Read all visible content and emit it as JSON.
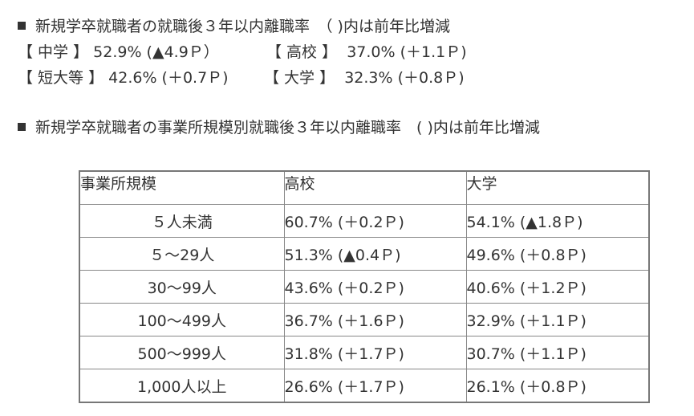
{
  "heading1": {
    "marker": "■",
    "text": "新規学卒就職者の就職後３年以内離職率　（ )内は前年比増減"
  },
  "summary": [
    [
      {
        "label": "【 中学 】",
        "value": "52.9% (▲4.9Ｐ）"
      },
      {
        "label": "【 高校 】",
        "value": "37.0% (＋1.1Ｐ)"
      }
    ],
    [
      {
        "label": "【 短大等 】",
        "value": "42.6% (＋0.7Ｐ)"
      },
      {
        "label": "【 大学 】",
        "value": "32.3% (＋0.8Ｐ)"
      }
    ]
  ],
  "heading2": {
    "marker": "■",
    "text": "新規学卒就職者の事業所規模別就職後３年以内離職率　( )内は前年比増減"
  },
  "table": {
    "headers": [
      "事業所規模",
      "高校",
      "大学"
    ],
    "rows": [
      [
        "５人未満",
        "60.7% (＋0.2Ｐ)",
        "54.1% (▲1.8Ｐ)"
      ],
      [
        "５～29人",
        "51.3% (▲0.4Ｐ)",
        "49.6% (＋0.8Ｐ)"
      ],
      [
        "30～99人",
        "43.6% (＋0.2Ｐ)",
        "40.6% (＋1.2Ｐ)"
      ],
      [
        "100～499人",
        "36.7% (＋1.6Ｐ)",
        "32.9% (＋1.1Ｐ)"
      ],
      [
        "500～999人",
        "31.8% (＋1.7Ｐ)",
        "30.7% (＋1.1Ｐ)"
      ],
      [
        "1,000人以上",
        "26.6% (＋1.7Ｐ)",
        "26.1% (＋0.8Ｐ)"
      ]
    ]
  }
}
